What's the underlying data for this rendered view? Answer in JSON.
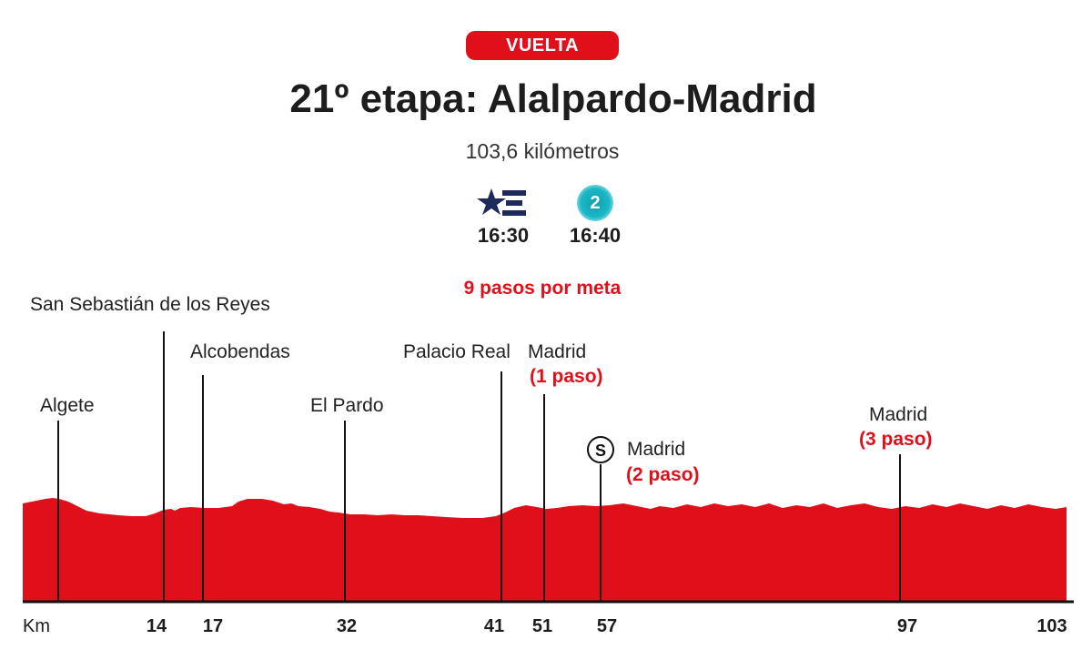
{
  "badge": "VUELTA",
  "title": "21º etapa: Alalpardo-Madrid",
  "subtitle": "103,6 kilómetros",
  "broadcasters": [
    {
      "icon": "eurosport-icon",
      "time": "16:30"
    },
    {
      "icon": "tve2-icon",
      "logo_text": "2",
      "time": "16:40"
    }
  ],
  "passes_note": "9 pasos por meta",
  "colors": {
    "accent": "#e0101b",
    "profile": "#e0101b",
    "text": "#222222"
  },
  "axis": {
    "unit_label": "Km",
    "max_km": 103.6
  },
  "markers": [
    {
      "name": "Algete",
      "km_label": ""
    },
    {
      "name": "San Sebastián de los Reyes",
      "km_label": "14"
    },
    {
      "name": "Alcobendas",
      "km_label": "17"
    },
    {
      "name": "El Pardo",
      "km_label": "32"
    },
    {
      "name": "Palacio Real",
      "km_label": "41"
    },
    {
      "name": "Madrid",
      "note": "(1 paso)",
      "km_label": "51"
    },
    {
      "name": "Madrid",
      "note": "(2 paso)",
      "km_label": "57",
      "sprint_icon": "S"
    },
    {
      "name": "Madrid",
      "note": "(3 paso)",
      "km_label": "97"
    },
    {
      "name": "",
      "km_label": "103"
    }
  ]
}
